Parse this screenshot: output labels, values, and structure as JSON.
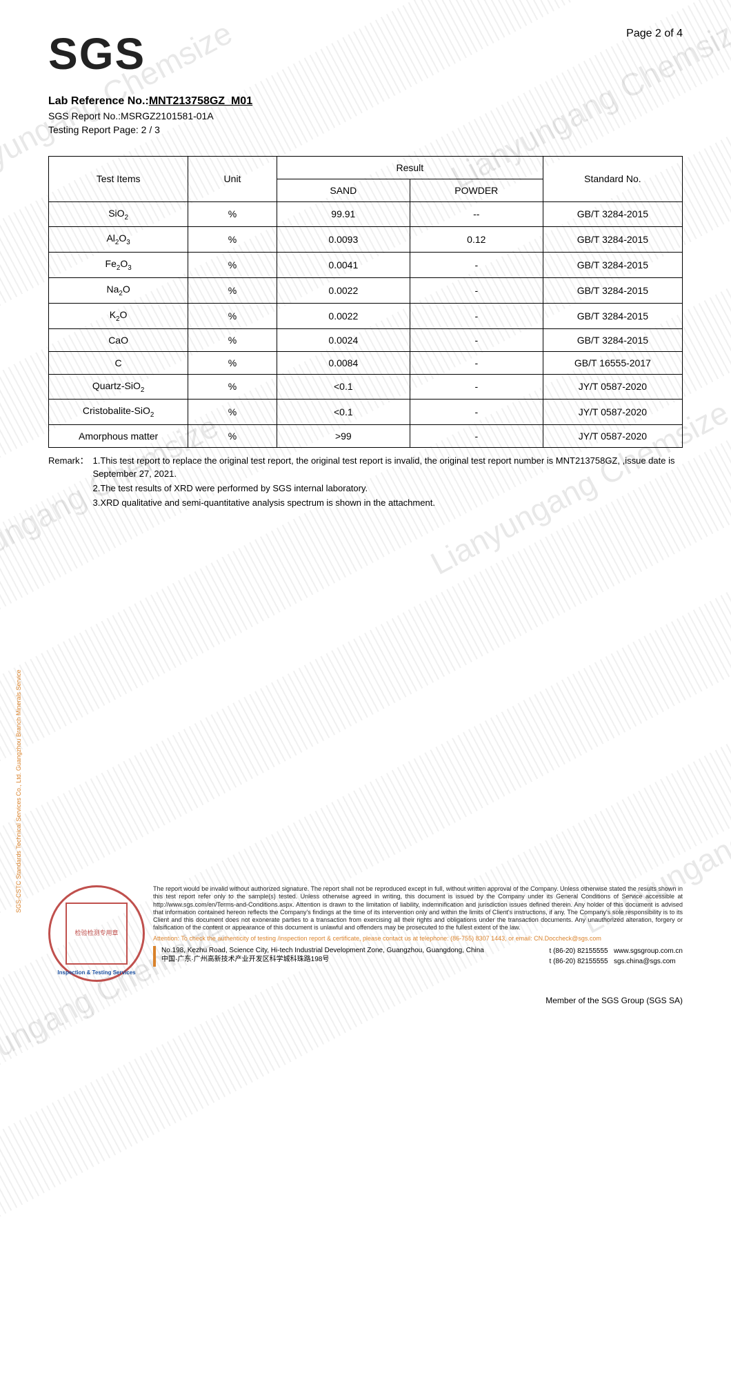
{
  "page_indicator": "Page 2 of 4",
  "logo_text": "SGS",
  "header": {
    "lab_ref_label": "Lab Reference No.:",
    "lab_ref_no": "MNT213758GZ_M01",
    "sgs_report_label": "SGS Report No.:",
    "sgs_report_no": "MSRGZ2101581-01A",
    "testing_page_label": "Testing Report Page: ",
    "testing_page": "2 / 3"
  },
  "table": {
    "col_test_items": "Test Items",
    "col_unit": "Unit",
    "col_result": "Result",
    "col_sand": "SAND",
    "col_powder": "POWDER",
    "col_standard": "Standard No.",
    "row_colors": {
      "border": "#000000",
      "bg": "#ffffff"
    },
    "rows": [
      {
        "item_html": "SiO<sub>2</sub>",
        "unit": "%",
        "sand": "99.91",
        "powder": "--",
        "standard": "GB/T 3284-2015"
      },
      {
        "item_html": "Al<sub>2</sub>O<sub>3</sub>",
        "unit": "%",
        "sand": "0.0093",
        "powder": "0.12",
        "standard": "GB/T 3284-2015"
      },
      {
        "item_html": "Fe<sub>2</sub>O<sub>3</sub>",
        "unit": "%",
        "sand": "0.0041",
        "powder": "-",
        "standard": "GB/T 3284-2015"
      },
      {
        "item_html": "Na<sub>2</sub>O",
        "unit": "%",
        "sand": "0.0022",
        "powder": "-",
        "standard": "GB/T 3284-2015"
      },
      {
        "item_html": "K<sub>2</sub>O",
        "unit": "%",
        "sand": "0.0022",
        "powder": "-",
        "standard": "GB/T 3284-2015"
      },
      {
        "item_html": "CaO",
        "unit": "%",
        "sand": "0.0024",
        "powder": "-",
        "standard": "GB/T 3284-2015"
      },
      {
        "item_html": "C",
        "unit": "%",
        "sand": "0.0084",
        "powder": "-",
        "standard": "GB/T 16555-2017"
      },
      {
        "item_html": "Quartz-SiO<sub>2</sub>",
        "unit": "%",
        "sand": "<0.1",
        "powder": "-",
        "standard": "JY/T 0587-2020"
      },
      {
        "item_html": "Cristobalite-SiO<sub>2</sub>",
        "unit": "%",
        "sand": "<0.1",
        "powder": "-",
        "standard": "JY/T 0587-2020"
      },
      {
        "item_html": "Amorphous matter",
        "unit": "%",
        "sand": ">99",
        "powder": "-",
        "standard": "JY/T 0587-2020"
      }
    ]
  },
  "remark": {
    "label": "Remark：",
    "items": [
      "1.This test report to replace the original test report, the original test report is invalid, the original test report number is MNT213758GZ, ,issue date is September 27, 2021.",
      "2.The test results of XRD were performed by SGS internal laboratory.",
      "3.XRD qualitative and semi-quantitative analysis spectrum is shown in the attachment."
    ]
  },
  "seal": {
    "center_line1": "检验检测专用章",
    "center_line2": "Inspection & Testing Services",
    "side_label": "SGS-CSTC Standards Technical Services Co., Ltd.  Guangzhou Branch  Minerals Service"
  },
  "disclaimer": {
    "body": "The report would be invalid without authorized signature. The report shall not be reproduced except in full, without written approval of the Company. Unless otherwise stated the results shown in this test report refer only to the sample(s) tested. Unless otherwise agreed in writing, this document is issued by the Company under its General Conditions of Service accessible at http://www.sgs.com/en/Terms-and-Conditions.aspx. Attention is drawn to the limitation of liability, indemnification and jurisdiction issues defined therein. Any holder of this document is advised that information contained hereon reflects the Company's findings at the time of its intervention only and within the limits of Client's instructions, if any. The Company's sole responsibility is to its Client and this document does not exonerate parties to a transaction from exercising all their rights and obligations under the transaction documents. Any unauthorized alteration, forgery or falsification of the content or appearance of this document is unlawful and offenders may be prosecuted to the fullest extent of the law.",
    "attention": "Attention: To check the authenticity of testing /inspection report & certificate, please contact us at telephone: (86-755) 8307 1443, or email: CN.Doccheck@sgs.com"
  },
  "address": {
    "en": "No.198, Kezhu Road, Science City, Hi-tech Industrial Development Zone, Guangzhou, Guangdong, China",
    "cn": "中国·广东·广州高新技术产业开发区科学城科珠路198号"
  },
  "contact": {
    "phone1": "t (86-20) 82155555",
    "phone2": "t (86-20) 82155555",
    "web": "www.sgsgroup.com.cn",
    "email": "sgs.china@sgs.com"
  },
  "member_line": "Member of the SGS Group (SGS SA)",
  "watermark_text": "Lianyungang Chemsize",
  "watermark_color": "rgba(0,0,0,0.09)"
}
